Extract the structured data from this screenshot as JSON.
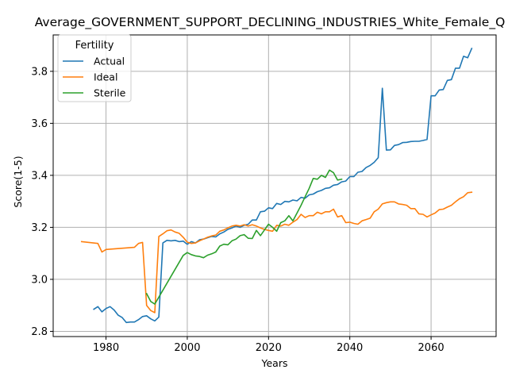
{
  "chart_data": {
    "type": "line",
    "title": "Average_GOVERNMENT_SUPPORT_DECLINING_INDUSTRIES_White_Female_Q",
    "xlabel": "Years",
    "ylabel": "Score(1-5)",
    "xlim": [
      1967,
      2076
    ],
    "ylim": [
      2.78,
      3.94
    ],
    "xticks": [
      1980,
      2000,
      2020,
      2040,
      2060
    ],
    "yticks": [
      2.8,
      3.0,
      3.2,
      3.4,
      3.6,
      3.8
    ],
    "ytick_labels": [
      "2.8",
      "3.0",
      "3.2",
      "3.4",
      "3.6",
      "3.8"
    ],
    "grid": true,
    "legend": {
      "title": "Fertility",
      "position": "top-left"
    },
    "series": [
      {
        "name": "Actual",
        "color": "#1f77b4",
        "x": [
          1977,
          1978,
          1979,
          1980,
          1981,
          1982,
          1983,
          1984,
          1985,
          1986,
          1987,
          1988,
          1989,
          1990,
          1991,
          1992,
          1993,
          1994,
          1995,
          1996,
          1997,
          1998,
          1999,
          2000,
          2001,
          2002,
          2003,
          2004,
          2005,
          2006,
          2007,
          2008,
          2009,
          2010,
          2011,
          2012,
          2013,
          2014,
          2015,
          2016,
          2017,
          2018,
          2019,
          2020,
          2021,
          2022,
          2023,
          2024,
          2025,
          2026,
          2027,
          2028,
          2029,
          2030,
          2031,
          2032,
          2033,
          2034,
          2035,
          2036,
          2037,
          2038,
          2039,
          2040,
          2041,
          2042,
          2043,
          2044,
          2045,
          2046,
          2047,
          2048,
          2049,
          2050,
          2051,
          2052,
          2053,
          2054,
          2055,
          2056,
          2057,
          2058,
          2059,
          2060,
          2061,
          2062,
          2063,
          2064,
          2065,
          2066,
          2067,
          2068,
          2069,
          2070
        ],
        "values": [
          2.885,
          2.895,
          2.875,
          2.888,
          2.895,
          2.882,
          2.862,
          2.853,
          2.834,
          2.836,
          2.836,
          2.845,
          2.857,
          2.86,
          2.848,
          2.84,
          2.855,
          3.14,
          3.15,
          3.148,
          3.15,
          3.145,
          3.147,
          3.135,
          3.145,
          3.14,
          3.152,
          3.155,
          3.16,
          3.165,
          3.163,
          3.175,
          3.182,
          3.192,
          3.198,
          3.205,
          3.2,
          3.208,
          3.212,
          3.228,
          3.228,
          3.26,
          3.262,
          3.275,
          3.272,
          3.292,
          3.288,
          3.3,
          3.298,
          3.305,
          3.302,
          3.315,
          3.312,
          3.325,
          3.328,
          3.337,
          3.342,
          3.35,
          3.352,
          3.362,
          3.365,
          3.375,
          3.378,
          3.395,
          3.395,
          3.412,
          3.415,
          3.43,
          3.438,
          3.45,
          3.468,
          3.735,
          3.497,
          3.498,
          3.515,
          3.518,
          3.526,
          3.527,
          3.53,
          3.531,
          3.531,
          3.534,
          3.538,
          3.706,
          3.706,
          3.728,
          3.73,
          3.765,
          3.768,
          3.812,
          3.812,
          3.858,
          3.852,
          3.888
        ]
      },
      {
        "name": "Ideal",
        "color": "#ff7f0e",
        "x": [
          1974,
          1978,
          1979,
          1980,
          1987,
          1988,
          1989,
          1990,
          1991,
          1992,
          1993,
          1994,
          1995,
          1996,
          1997,
          1998,
          1999,
          2000,
          2001,
          2002,
          2003,
          2004,
          2005,
          2006,
          2007,
          2008,
          2009,
          2010,
          2011,
          2012,
          2013,
          2014,
          2015,
          2016,
          2017,
          2018,
          2019,
          2020,
          2021,
          2022,
          2023,
          2024,
          2025,
          2026,
          2027,
          2028,
          2029,
          2030,
          2031,
          2032,
          2033,
          2034,
          2035,
          2036,
          2037,
          2038,
          2039,
          2040,
          2041,
          2042,
          2043,
          2044,
          2045,
          2046,
          2047,
          2048,
          2049,
          2050,
          2051,
          2052,
          2053,
          2054,
          2055,
          2056,
          2057,
          2058,
          2059,
          2060,
          2061,
          2062,
          2063,
          2064,
          2065,
          2066,
          2067,
          2068,
          2069,
          2070
        ],
        "values": [
          3.145,
          3.138,
          3.105,
          3.115,
          3.123,
          3.138,
          3.142,
          2.9,
          2.88,
          2.872,
          3.165,
          3.175,
          3.187,
          3.19,
          3.182,
          3.177,
          3.162,
          3.143,
          3.138,
          3.14,
          3.148,
          3.155,
          3.162,
          3.167,
          3.17,
          3.185,
          3.19,
          3.198,
          3.205,
          3.208,
          3.205,
          3.21,
          3.205,
          3.21,
          3.205,
          3.198,
          3.192,
          3.188,
          3.185,
          3.208,
          3.205,
          3.212,
          3.208,
          3.22,
          3.23,
          3.25,
          3.238,
          3.245,
          3.245,
          3.258,
          3.252,
          3.26,
          3.26,
          3.27,
          3.24,
          3.245,
          3.218,
          3.22,
          3.215,
          3.212,
          3.225,
          3.23,
          3.235,
          3.26,
          3.27,
          3.29,
          3.295,
          3.298,
          3.298,
          3.29,
          3.288,
          3.285,
          3.272,
          3.272,
          3.252,
          3.25,
          3.24,
          3.248,
          3.255,
          3.268,
          3.27,
          3.278,
          3.285,
          3.298,
          3.31,
          3.318,
          3.333,
          3.335
        ]
      },
      {
        "name": "Sterile",
        "color": "#2ca02c",
        "x": [
          1990,
          1991,
          1992,
          1999,
          2000,
          2001,
          2002,
          2003,
          2004,
          2005,
          2006,
          2007,
          2008,
          2009,
          2010,
          2011,
          2012,
          2013,
          2014,
          2015,
          2016,
          2017,
          2018,
          2019,
          2020,
          2021,
          2022,
          2023,
          2024,
          2025,
          2026,
          2027,
          2028,
          2029,
          2030,
          2031,
          2032,
          2033,
          2034,
          2035,
          2036,
          2037,
          2038
        ],
        "values": [
          2.945,
          2.915,
          2.905,
          3.092,
          3.103,
          3.095,
          3.09,
          3.088,
          3.083,
          3.093,
          3.098,
          3.105,
          3.128,
          3.135,
          3.133,
          3.148,
          3.155,
          3.168,
          3.172,
          3.158,
          3.157,
          3.188,
          3.168,
          3.19,
          3.212,
          3.2,
          3.185,
          3.218,
          3.225,
          3.245,
          3.225,
          3.255,
          3.285,
          3.318,
          3.35,
          3.388,
          3.385,
          3.4,
          3.392,
          3.42,
          3.41,
          3.382,
          3.385
        ]
      }
    ]
  }
}
